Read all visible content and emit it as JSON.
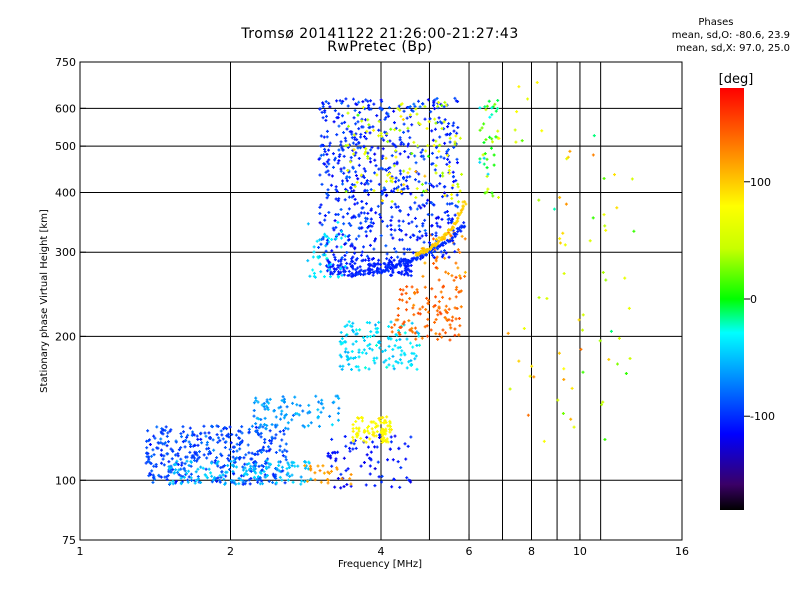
{
  "header": {
    "title_line1": "Tromsø 20141122 21:26:00-21:27:43",
    "title_line2": "RwPretec (Bp)"
  },
  "stats": {
    "heading": "Phases",
    "line1": "mean, sd,O: -80.6, 23.9",
    "line2": "mean, sd,X:  97.0, 25.0"
  },
  "colorbar": {
    "unit_label": "[deg]",
    "ticks": [
      {
        "value": 100,
        "label": "100"
      },
      {
        "value": 0,
        "label": "0"
      },
      {
        "value": -100,
        "label": "-100"
      }
    ],
    "range": [
      -180,
      180
    ]
  },
  "chart_data": {
    "type": "scatter",
    "title": "Tromsø 20141122 21:26:00-21:27:43",
    "subtitle": "RwPretec (Bp)",
    "xlabel": "Frequency [MHz]",
    "ylabel": "Stationary phase Virtual Height [km]",
    "x_scale": "log",
    "y_scale": "log",
    "xlim": [
      1,
      16
    ],
    "ylim": [
      75,
      750
    ],
    "x_ticks": [
      1,
      2,
      4,
      6,
      8,
      10,
      16
    ],
    "x_tick_labels": [
      "1",
      "2",
      "4",
      "6",
      "8",
      "10",
      "16"
    ],
    "x_gridlines": [
      2,
      4,
      5,
      6,
      7,
      8,
      9,
      10,
      11
    ],
    "y_ticks": [
      75,
      100,
      200,
      300,
      400,
      500,
      600,
      750
    ],
    "y_tick_labels": [
      "75",
      "100",
      "200",
      "300",
      "400",
      "500",
      "600",
      "750"
    ],
    "y_gridlines": [
      100,
      200,
      300,
      400,
      500,
      600
    ],
    "grid": true,
    "color_variable": "phase [deg]",
    "clusters": [
      {
        "x": [
          1.35,
          2.6
        ],
        "y": [
          98,
          130
        ],
        "phase": -90,
        "spread": 25,
        "count": 380
      },
      {
        "x": [
          1.5,
          2.9
        ],
        "y": [
          98,
          110
        ],
        "phase": -50,
        "spread": 15,
        "count": 140
      },
      {
        "x": [
          2.2,
          3.3
        ],
        "y": [
          128,
          150
        ],
        "phase": -60,
        "spread": 25,
        "count": 90
      },
      {
        "x": [
          3.1,
          4.6
        ],
        "y": [
          96,
          125
        ],
        "phase": -110,
        "spread": 20,
        "count": 80
      },
      {
        "x": [
          3.5,
          4.2
        ],
        "y": [
          120,
          136
        ],
        "phase": 80,
        "spread": 15,
        "count": 90
      },
      {
        "x": [
          2.8,
          3.5
        ],
        "y": [
          98,
          108
        ],
        "phase": 120,
        "spread": 15,
        "count": 25
      },
      {
        "x": [
          3.3,
          4.8
        ],
        "y": [
          170,
          215
        ],
        "phase": -40,
        "spread": 25,
        "count": 140
      },
      {
        "x": [
          4.2,
          5.8
        ],
        "y": [
          195,
          255
        ],
        "phase": 140,
        "spread": 25,
        "count": 110
      },
      {
        "x": [
          4.8,
          5.9
        ],
        "y": [
          260,
          330
        ],
        "phase": 130,
        "spread": 30,
        "count": 40
      },
      {
        "x": [
          3.1,
          4.6
        ],
        "y": [
          268,
          290
        ],
        "phase": -105,
        "spread": 10,
        "count": 160
      },
      {
        "x": [
          3.0,
          5.7
        ],
        "y": [
          290,
          630
        ],
        "phase": -100,
        "spread": 30,
        "count": 650
      },
      {
        "x": [
          2.85,
          3.4
        ],
        "y": [
          265,
          350
        ],
        "phase": -40,
        "spread": 20,
        "count": 45
      },
      {
        "x": [
          3.4,
          5.8
        ],
        "y": [
          380,
          620
        ],
        "phase": 60,
        "spread": 60,
        "count": 120
      },
      {
        "x": [
          6.3,
          6.9
        ],
        "y": [
          390,
          630
        ],
        "phase": 10,
        "spread": 80,
        "count": 45
      },
      {
        "x": [
          7.0,
          13.0
        ],
        "y": [
          120,
          680
        ],
        "phase": 60,
        "spread": 120,
        "count": 70
      }
    ],
    "curves": [
      {
        "name": "cusp",
        "x": [
          3.5,
          4.0,
          4.5,
          5.0,
          5.5,
          5.9
        ],
        "y": [
          268,
          275,
          285,
          300,
          320,
          345
        ],
        "phase": -100
      },
      {
        "name": "x-trace",
        "x": [
          4.7,
          5.0,
          5.3,
          5.6,
          5.9
        ],
        "y": [
          295,
          305,
          320,
          340,
          385
        ],
        "phase": 100
      }
    ]
  }
}
